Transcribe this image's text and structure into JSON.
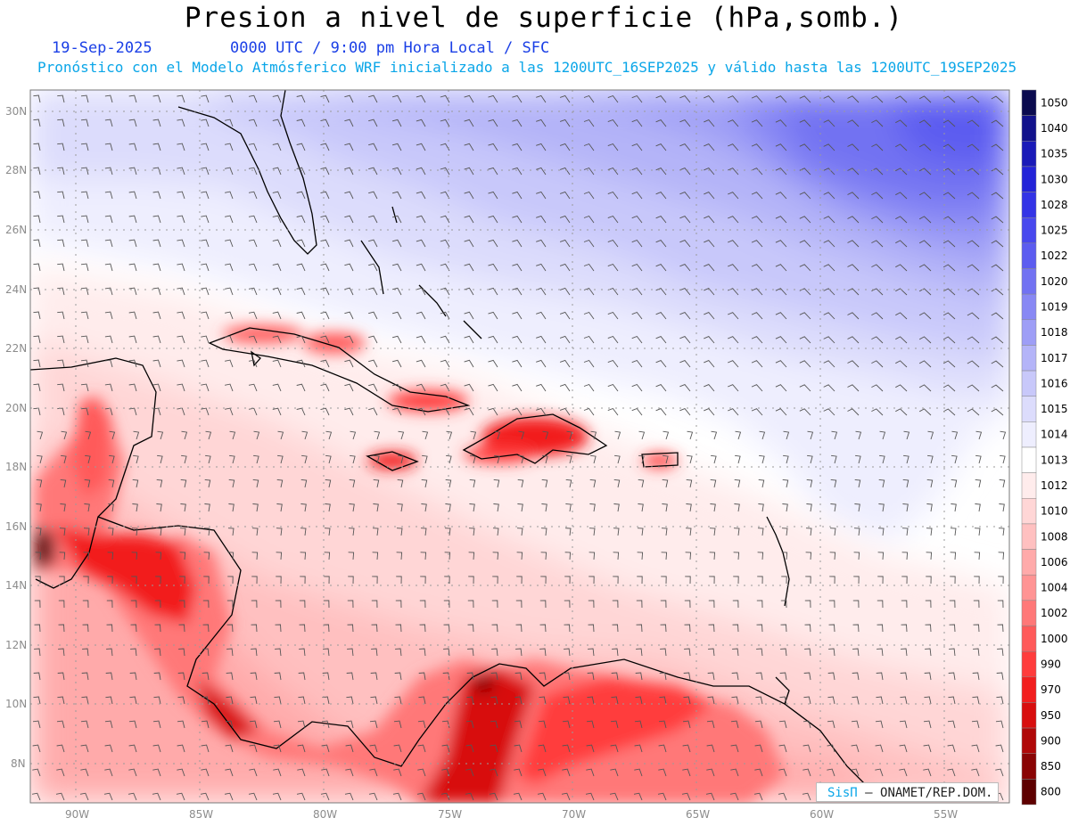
{
  "header": {
    "title": "Presion a nivel de superficie (hPa,somb.)",
    "date": "19-Sep-2025",
    "valid_time": "0000 UTC / 9:00 pm Hora Local / SFC",
    "forecast_note": "Pronóstico con el Modelo Atmósferico WRF inicializado a las 1200UTC_16SEP2025 y válido hasta las  1200UTC_19SEP2025"
  },
  "axes": {
    "lat_labels": [
      "30N",
      "28N",
      "26N",
      "24N",
      "22N",
      "20N",
      "18N",
      "16N",
      "14N",
      "12N",
      "10N",
      "8N"
    ],
    "lon_labels": [
      "90W",
      "85W",
      "80W",
      "75W",
      "70W",
      "65W",
      "60W",
      "55W"
    ]
  },
  "colorbar": {
    "labels": [
      "1050",
      "1040",
      "1035",
      "1030",
      "1028",
      "1025",
      "1022",
      "1020",
      "1019",
      "1018",
      "1017",
      "1016",
      "1015",
      "1014",
      "1013",
      "1012",
      "1010",
      "1008",
      "1006",
      "1004",
      "1002",
      "1000",
      "990",
      "970",
      "950",
      "900",
      "850",
      "800"
    ],
    "colors": [
      "#0b0b4f",
      "#12128c",
      "#1a1ab8",
      "#2323d8",
      "#3333e6",
      "#4848ee",
      "#5c5cf0",
      "#7272f2",
      "#8888f4",
      "#9e9ef6",
      "#b4b4f8",
      "#c8c8fa",
      "#dcdcfc",
      "#eeeefe",
      "#ffffff",
      "#ffecec",
      "#ffd6d6",
      "#ffc0c0",
      "#ffaaaa",
      "#ff9494",
      "#ff7878",
      "#ff5a5a",
      "#ff3c3c",
      "#f21e1e",
      "#d80e0e",
      "#b00808",
      "#8a0404",
      "#5e0000"
    ]
  },
  "credit": {
    "brand": "SisΠ",
    "text": "– ONAMET/REP.DOM."
  }
}
